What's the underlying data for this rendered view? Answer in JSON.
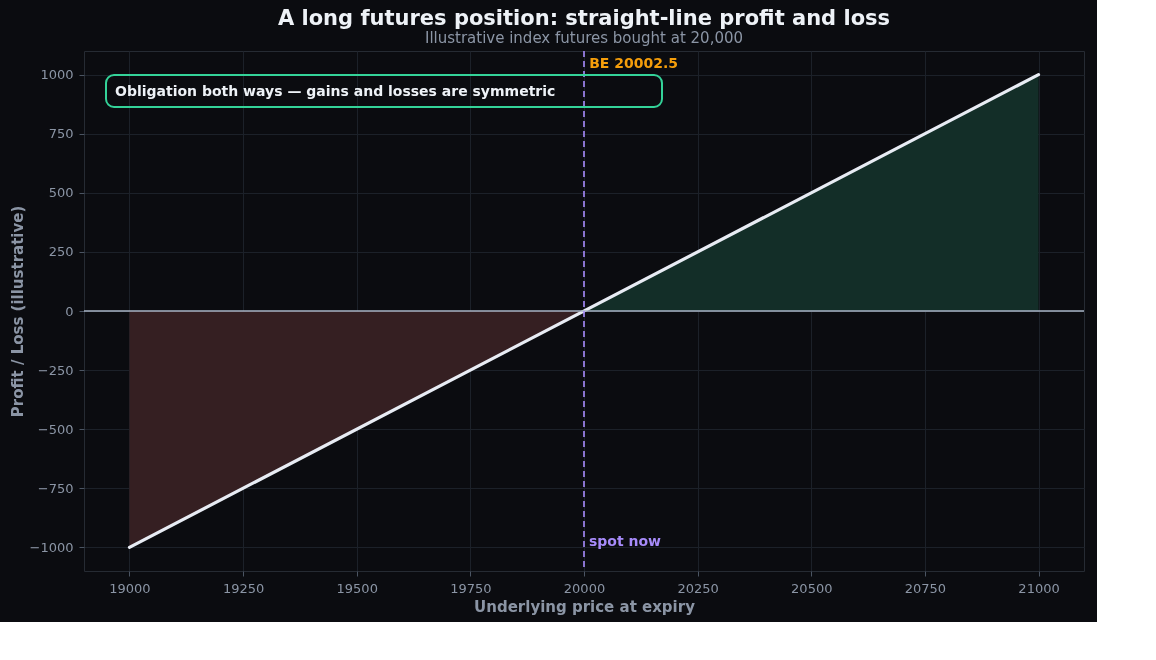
{
  "chart_data": {
    "type": "line",
    "title": "A long futures position: straight-line profit and loss",
    "subtitle": "Illustrative index futures bought at 20,000",
    "xlabel": "Underlying price at expiry",
    "ylabel": "Profit / Loss (illustrative)",
    "series": [
      {
        "type": "area",
        "color": "#351f22",
        "x": [
          19000,
          20000
        ],
        "values": [
          -1000,
          0
        ]
      },
      {
        "type": "area",
        "color": "#132e28",
        "x": [
          20000,
          21000
        ],
        "values": [
          0,
          1000
        ]
      },
      {
        "type": "line",
        "color": "#e8ecf4",
        "x": [
          19000,
          21000
        ],
        "values": [
          -1000,
          1000
        ]
      }
    ],
    "xlim": [
      18900,
      21100
    ],
    "xticks": [
      19000,
      19250,
      19500,
      19750,
      20000,
      20250,
      20500,
      20750,
      21000
    ],
    "ylim": [
      -1100,
      1100
    ],
    "yticks": [
      -1000,
      -750,
      -500,
      -250,
      0,
      250,
      500,
      750,
      1000
    ],
    "ref_lines": [
      {
        "axis": "y",
        "value": 0,
        "label": null,
        "color": "#a9b4c6",
        "line_style": "solid"
      },
      {
        "axis": "x",
        "value": 20000,
        "label": "spot now",
        "color": "#a78bfa",
        "line_style": "dashed"
      }
    ],
    "annotations": [
      {
        "text": "BE 20002.5",
        "x": 20002.5,
        "y": 1000
      },
      "Obligation both ways — gains and losses are symmetric"
    ],
    "grid": true,
    "marker": "none",
    "line_style": "solid"
  }
}
